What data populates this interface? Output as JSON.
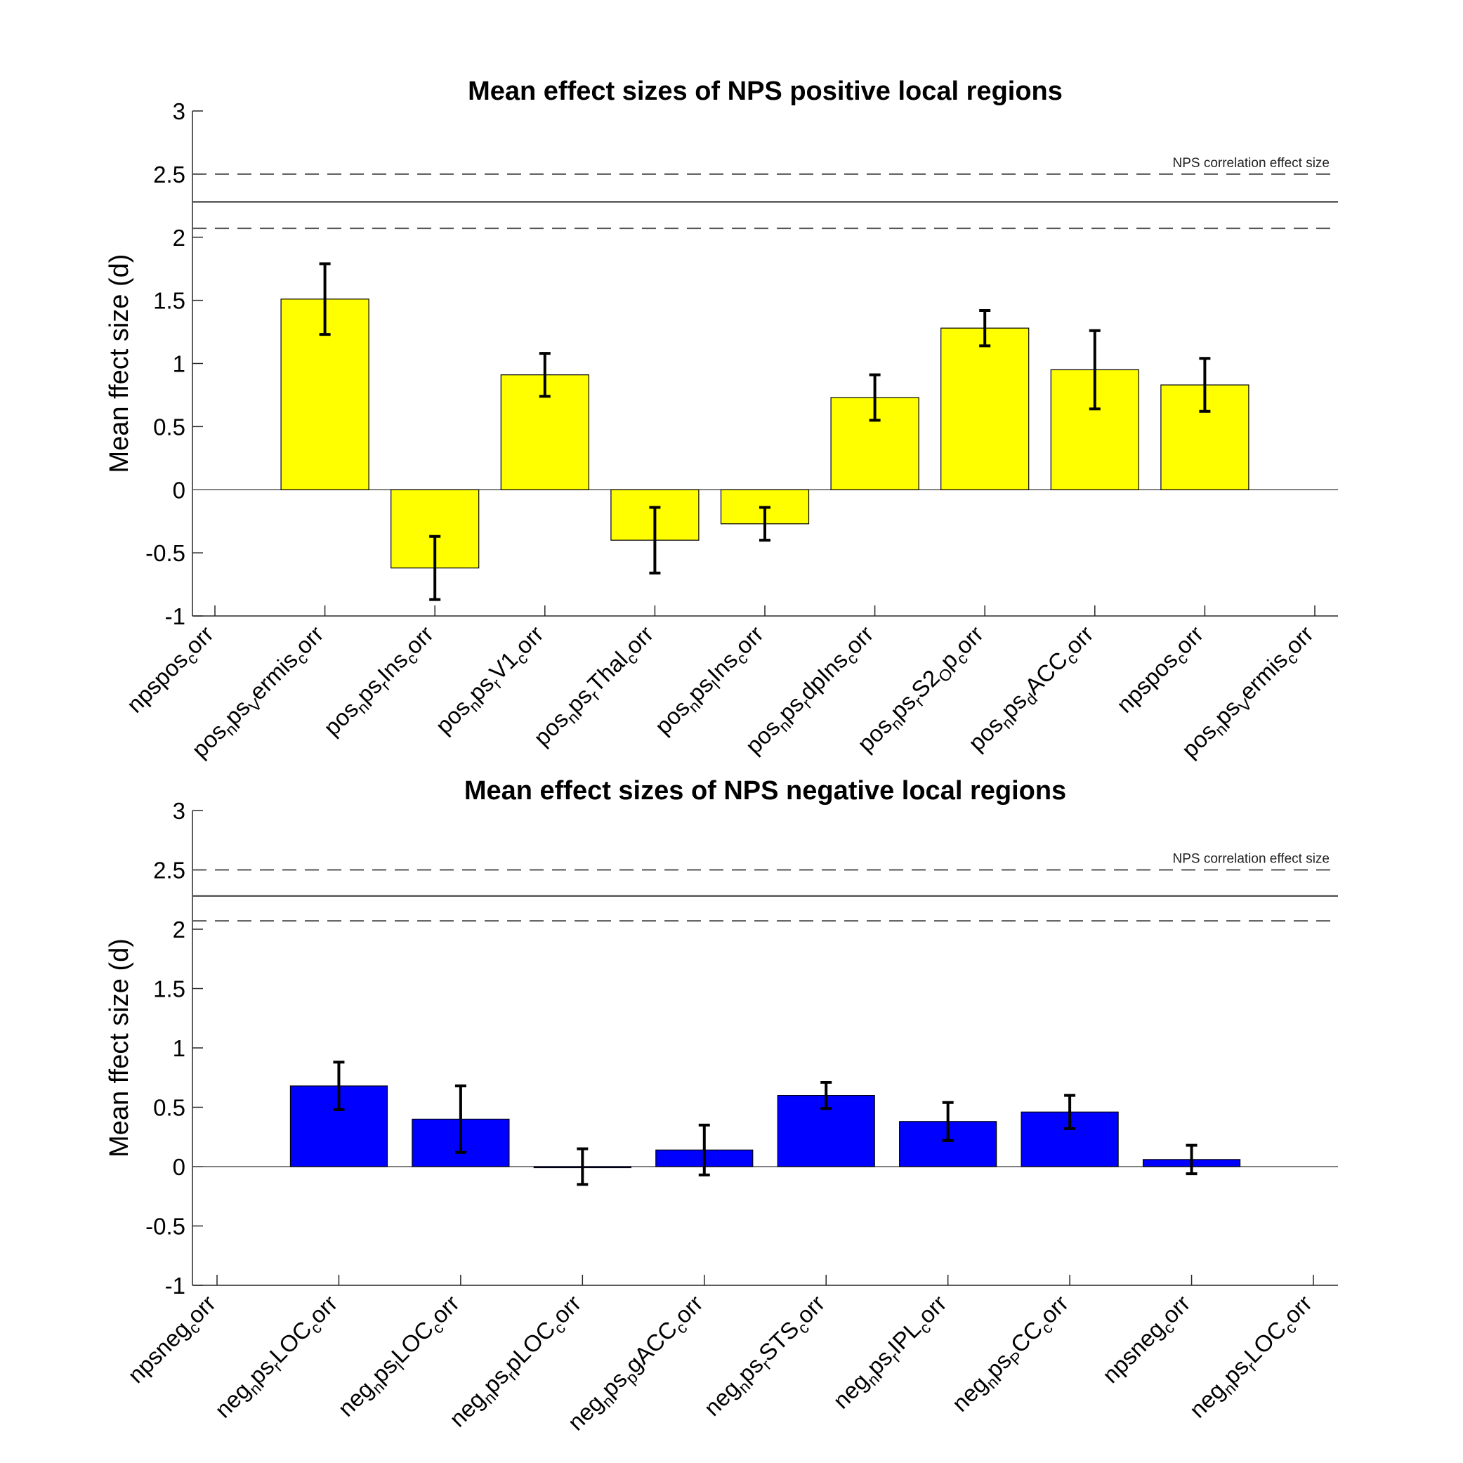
{
  "chart_data": [
    {
      "type": "bar",
      "title": "Mean effect sizes of NPS positive local regions",
      "ylabel": "Mean ffect size (d)",
      "ylim": [
        -1,
        3
      ],
      "yticks": [
        "3",
        "2.5",
        "2",
        "1.5",
        "1",
        "0.5",
        "0",
        "-0.5",
        "-1"
      ],
      "bar_color": "#ffff00",
      "categories": [
        [
          {
            "t": "npspos"
          },
          {
            "t": "c",
            "s": "sub"
          },
          {
            "t": "orr"
          }
        ],
        [
          {
            "t": "pos"
          },
          {
            "t": "n",
            "s": "sub"
          },
          {
            "t": "ps"
          },
          {
            "t": "V",
            "s": "sub"
          },
          {
            "t": "ermis"
          },
          {
            "t": "c",
            "s": "sub"
          },
          {
            "t": "orr"
          }
        ],
        [
          {
            "t": "pos"
          },
          {
            "t": "n",
            "s": "sub"
          },
          {
            "t": "ps"
          },
          {
            "t": "r",
            "s": "sub"
          },
          {
            "t": "Ins"
          },
          {
            "t": "c",
            "s": "sub"
          },
          {
            "t": "orr"
          }
        ],
        [
          {
            "t": "pos"
          },
          {
            "t": "n",
            "s": "sub"
          },
          {
            "t": "ps"
          },
          {
            "t": "r",
            "s": "sub"
          },
          {
            "t": "V1"
          },
          {
            "t": "c",
            "s": "sub"
          },
          {
            "t": "orr"
          }
        ],
        [
          {
            "t": "pos"
          },
          {
            "t": "n",
            "s": "sub"
          },
          {
            "t": "ps"
          },
          {
            "t": "r",
            "s": "sub"
          },
          {
            "t": "Thal"
          },
          {
            "t": "c",
            "s": "sub"
          },
          {
            "t": "orr"
          }
        ],
        [
          {
            "t": "pos"
          },
          {
            "t": "n",
            "s": "sub"
          },
          {
            "t": "ps"
          },
          {
            "t": "l",
            "s": "sub"
          },
          {
            "t": "Ins"
          },
          {
            "t": "c",
            "s": "sub"
          },
          {
            "t": "orr"
          }
        ],
        [
          {
            "t": "pos"
          },
          {
            "t": "n",
            "s": "sub"
          },
          {
            "t": "ps"
          },
          {
            "t": "r",
            "s": "sub"
          },
          {
            "t": "dpIns"
          },
          {
            "t": "c",
            "s": "sub"
          },
          {
            "t": "orr"
          }
        ],
        [
          {
            "t": "pos"
          },
          {
            "t": "n",
            "s": "sub"
          },
          {
            "t": "ps"
          },
          {
            "t": "r",
            "s": "sub"
          },
          {
            "t": "S2"
          },
          {
            "t": "O",
            "s": "sub"
          },
          {
            "t": "p"
          },
          {
            "t": "c",
            "s": "sub"
          },
          {
            "t": "orr"
          }
        ],
        [
          {
            "t": "pos"
          },
          {
            "t": "n",
            "s": "sub"
          },
          {
            "t": "ps"
          },
          {
            "t": "d",
            "s": "sub"
          },
          {
            "t": "ACC"
          },
          {
            "t": "c",
            "s": "sub"
          },
          {
            "t": "orr"
          }
        ],
        [
          {
            "t": "npspos"
          },
          {
            "t": "c",
            "s": "sub"
          },
          {
            "t": "orr"
          }
        ],
        [
          {
            "t": "pos"
          },
          {
            "t": "n",
            "s": "sub"
          },
          {
            "t": "ps"
          },
          {
            "t": "V",
            "s": "sub"
          },
          {
            "t": "ermis"
          },
          {
            "t": "c",
            "s": "sub"
          },
          {
            "t": "orr"
          }
        ]
      ],
      "values": [
        null,
        1.51,
        -0.62,
        0.91,
        -0.4,
        -0.27,
        0.73,
        1.28,
        0.95,
        0.83,
        null
      ],
      "errors": [
        null,
        0.28,
        0.25,
        0.17,
        0.26,
        0.13,
        0.18,
        0.14,
        0.31,
        0.21,
        null
      ],
      "reference": {
        "label": "NPS correlation effect size",
        "value": 2.28,
        "ci": [
          2.07,
          2.5
        ]
      }
    },
    {
      "type": "bar",
      "title": "Mean effect sizes of NPS negative local regions",
      "ylabel": "Mean ffect size (d)",
      "ylim": [
        -1,
        3
      ],
      "yticks": [
        "3",
        "2.5",
        "2",
        "1.5",
        "1",
        "0.5",
        "0",
        "-0.5",
        "-1"
      ],
      "bar_color": "#0000ff",
      "categories": [
        [
          {
            "t": "npsneg"
          },
          {
            "t": "c",
            "s": "sub"
          },
          {
            "t": "orr"
          }
        ],
        [
          {
            "t": "neg"
          },
          {
            "t": "n",
            "s": "sub"
          },
          {
            "t": "ps"
          },
          {
            "t": "r",
            "s": "sub"
          },
          {
            "t": "LOC"
          },
          {
            "t": "c",
            "s": "sub"
          },
          {
            "t": "orr"
          }
        ],
        [
          {
            "t": "neg"
          },
          {
            "t": "n",
            "s": "sub"
          },
          {
            "t": "ps"
          },
          {
            "t": "l",
            "s": "sub"
          },
          {
            "t": "LOC"
          },
          {
            "t": "c",
            "s": "sub"
          },
          {
            "t": "orr"
          }
        ],
        [
          {
            "t": "neg"
          },
          {
            "t": "n",
            "s": "sub"
          },
          {
            "t": "ps"
          },
          {
            "t": "r",
            "s": "sub"
          },
          {
            "t": "pLOC"
          },
          {
            "t": "c",
            "s": "sub"
          },
          {
            "t": "orr"
          }
        ],
        [
          {
            "t": "neg"
          },
          {
            "t": "n",
            "s": "sub"
          },
          {
            "t": "ps"
          },
          {
            "t": "p",
            "s": "sub"
          },
          {
            "t": "gACC"
          },
          {
            "t": "c",
            "s": "sub"
          },
          {
            "t": "orr"
          }
        ],
        [
          {
            "t": "neg"
          },
          {
            "t": "n",
            "s": "sub"
          },
          {
            "t": "ps"
          },
          {
            "t": "r",
            "s": "sub"
          },
          {
            "t": "STS"
          },
          {
            "t": "c",
            "s": "sub"
          },
          {
            "t": "orr"
          }
        ],
        [
          {
            "t": "neg"
          },
          {
            "t": "n",
            "s": "sub"
          },
          {
            "t": "ps"
          },
          {
            "t": "r",
            "s": "sub"
          },
          {
            "t": "IPL"
          },
          {
            "t": "c",
            "s": "sub"
          },
          {
            "t": "orr"
          }
        ],
        [
          {
            "t": "neg"
          },
          {
            "t": "n",
            "s": "sub"
          },
          {
            "t": "ps"
          },
          {
            "t": "P",
            "s": "sub"
          },
          {
            "t": "CC"
          },
          {
            "t": "c",
            "s": "sub"
          },
          {
            "t": "orr"
          }
        ],
        [
          {
            "t": "npsneg"
          },
          {
            "t": "c",
            "s": "sub"
          },
          {
            "t": "orr"
          }
        ],
        [
          {
            "t": "neg"
          },
          {
            "t": "n",
            "s": "sub"
          },
          {
            "t": "ps"
          },
          {
            "t": "r",
            "s": "sub"
          },
          {
            "t": "LOC"
          },
          {
            "t": "c",
            "s": "sub"
          },
          {
            "t": "orr"
          }
        ]
      ],
      "values": [
        null,
        0.68,
        0.4,
        0.0,
        0.14,
        0.6,
        0.38,
        0.46,
        0.06,
        null
      ],
      "errors": [
        null,
        0.2,
        0.28,
        0.15,
        0.21,
        0.11,
        0.16,
        0.14,
        0.12,
        null
      ],
      "reference": {
        "label": "NPS correlation effect size",
        "value": 2.28,
        "ci": [
          2.07,
          2.5
        ]
      }
    }
  ]
}
